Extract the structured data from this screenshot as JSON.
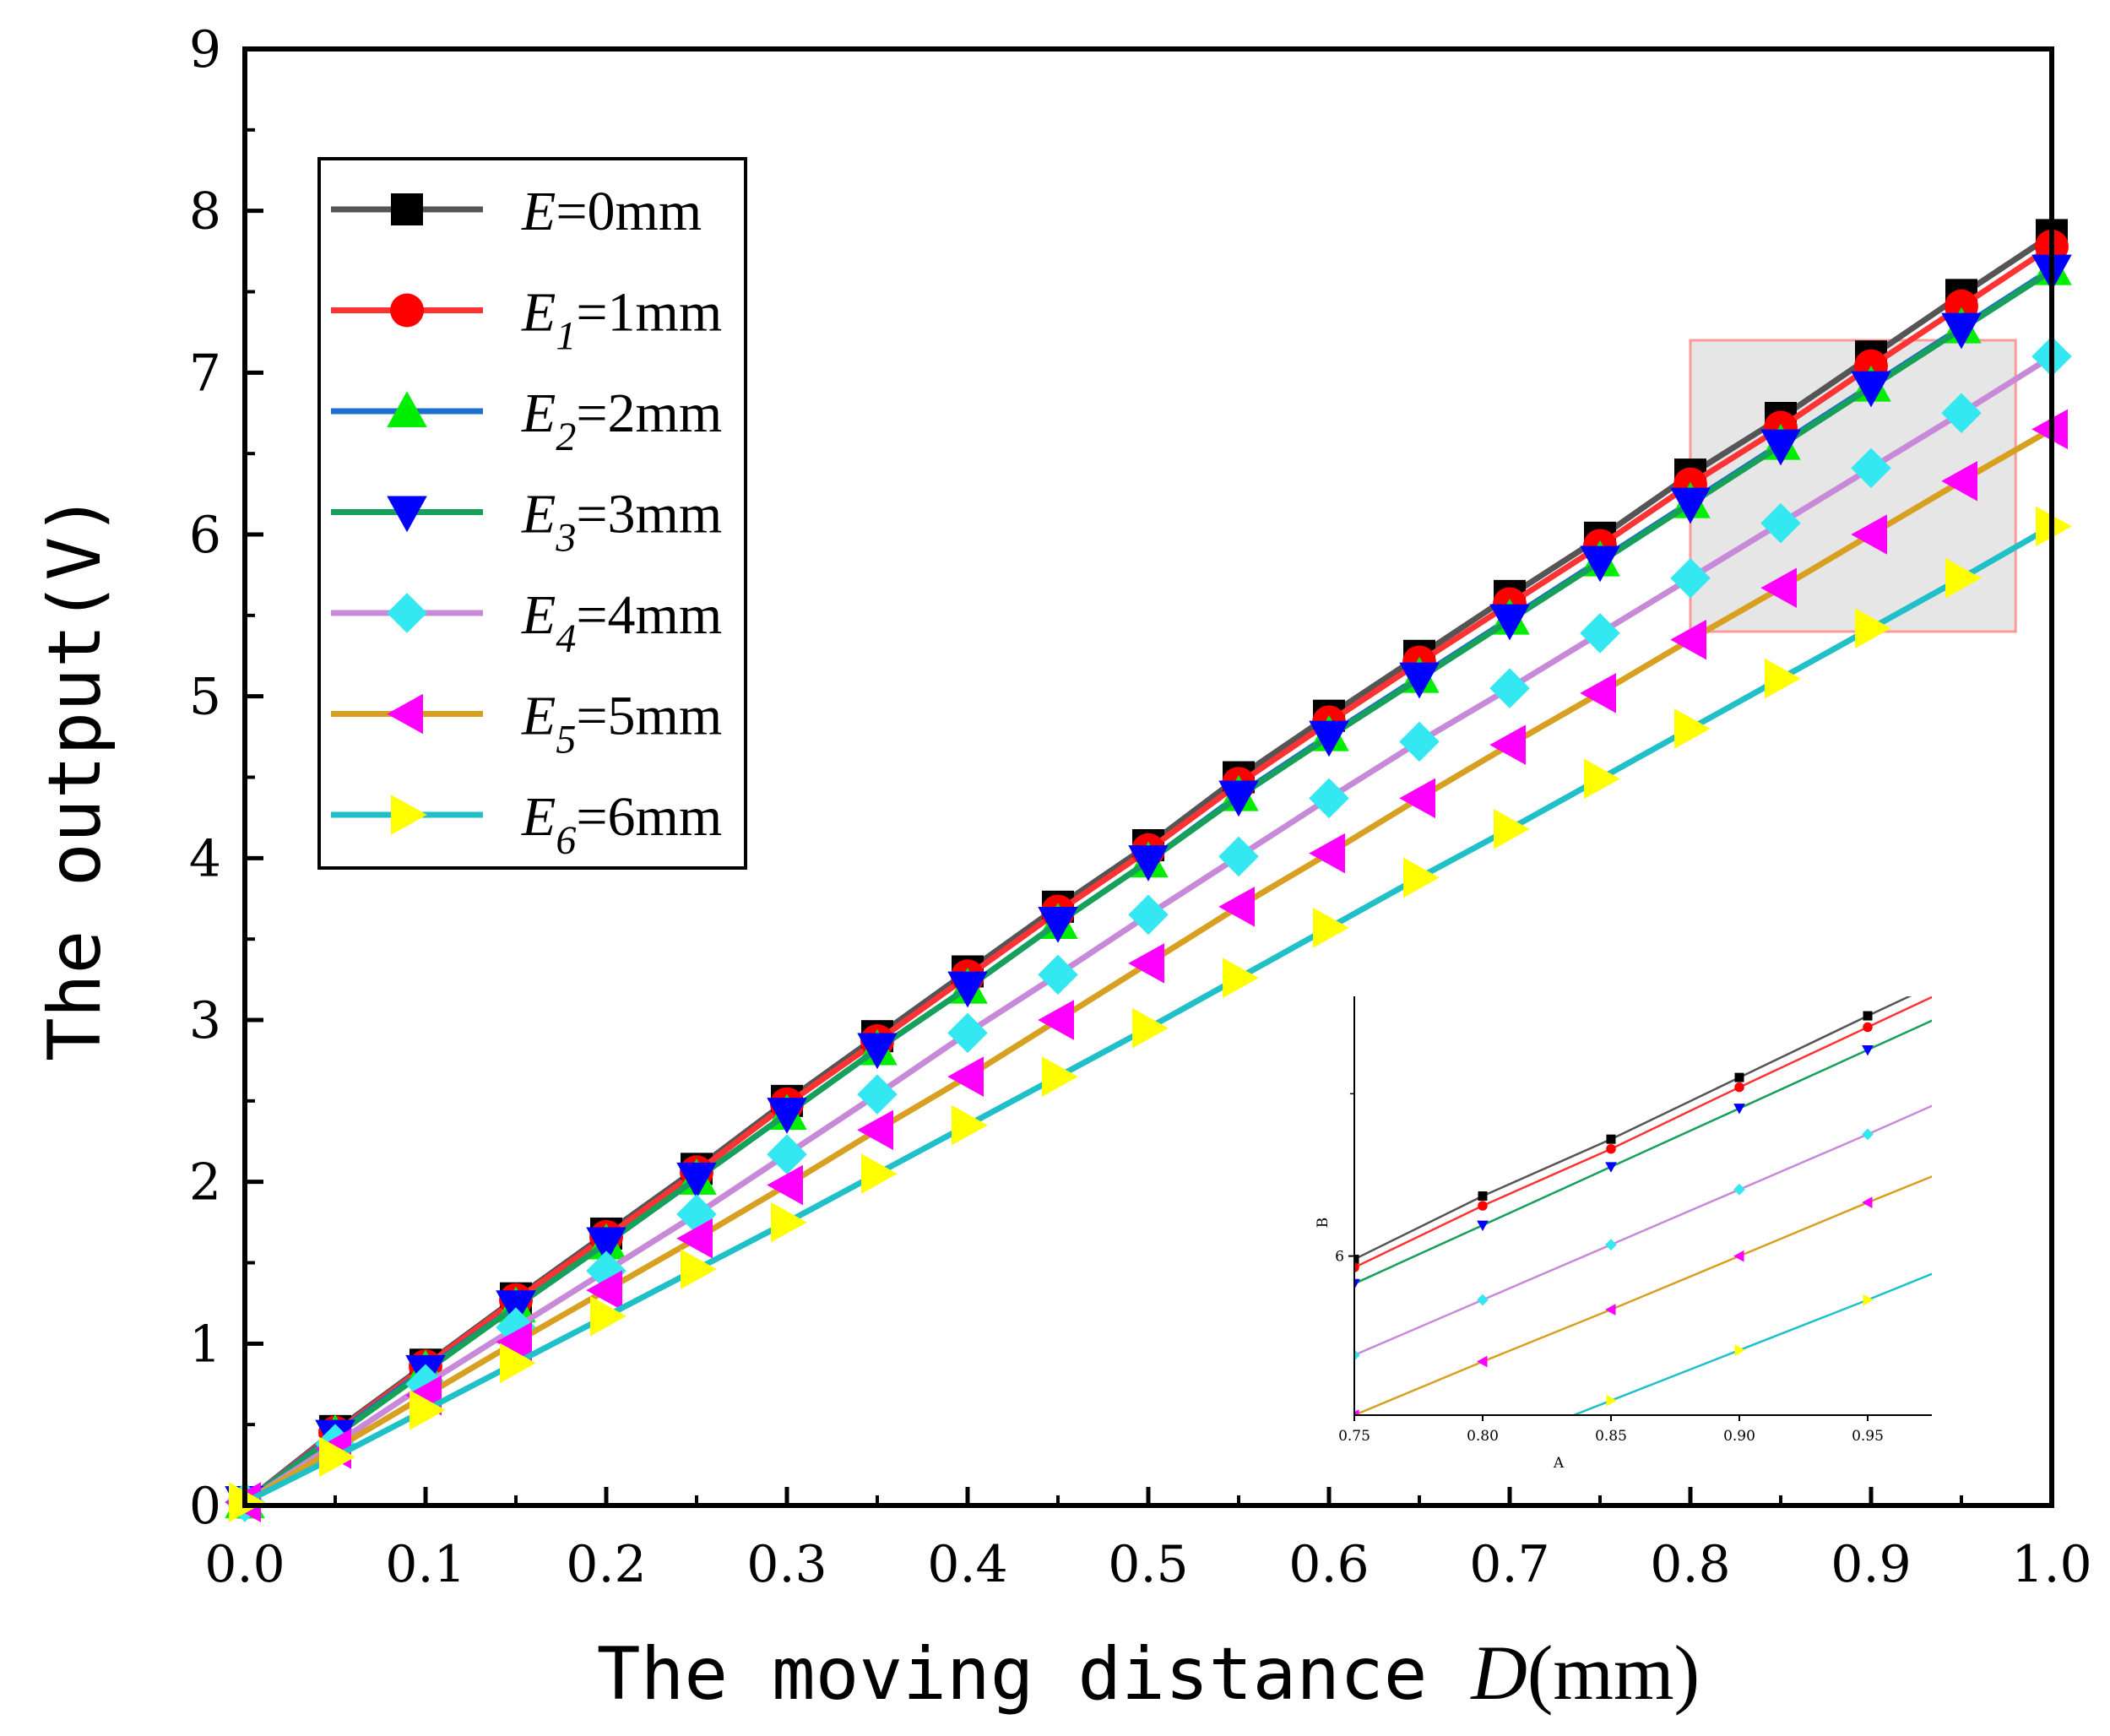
{
  "chart_data": {
    "type": "line",
    "xlabel": {
      "prefix": "The moving distance ",
      "var": "D",
      "suffix": "(mm)"
    },
    "ylabel": "The output(V)",
    "xlim": [
      0,
      1
    ],
    "ylim": [
      0,
      9
    ],
    "xticks": [
      "0.0",
      "0.1",
      "0.2",
      "0.3",
      "0.4",
      "0.5",
      "0.6",
      "0.7",
      "0.8",
      "0.9",
      "1.0"
    ],
    "yticks": [
      "0",
      "1",
      "2",
      "3",
      "4",
      "5",
      "6",
      "7",
      "8",
      "9"
    ],
    "x": [
      0,
      0.05,
      0.1,
      0.15,
      0.2,
      0.25,
      0.3,
      0.35,
      0.4,
      0.45,
      0.5,
      0.55,
      0.6,
      0.65,
      0.7,
      0.75,
      0.8,
      0.85,
      0.9,
      0.95,
      1.0
    ],
    "series": [
      {
        "name": "E=0mm",
        "label": {
          "var": "E",
          "sub": "",
          "rest": "=0mm"
        },
        "line_color": "#555555",
        "marker_color": "#000000",
        "marker": "square",
        "values": [
          0.02,
          0.46,
          0.87,
          1.28,
          1.68,
          2.08,
          2.5,
          2.9,
          3.3,
          3.7,
          4.08,
          4.5,
          4.88,
          5.25,
          5.62,
          5.98,
          6.37,
          6.72,
          7.1,
          7.48,
          7.85
        ]
      },
      {
        "name": "E1=1mm",
        "label": {
          "var": "E",
          "sub": "1",
          "rest": "=1mm"
        },
        "line_color": "#ff3333",
        "marker_color": "#ff0000",
        "marker": "circle",
        "values": [
          0.02,
          0.45,
          0.86,
          1.27,
          1.66,
          2.06,
          2.48,
          2.87,
          3.27,
          3.67,
          4.05,
          4.46,
          4.84,
          5.21,
          5.57,
          5.93,
          6.31,
          6.66,
          7.04,
          7.41,
          7.78
        ]
      },
      {
        "name": "E2=2mm",
        "label": {
          "var": "E",
          "sub": "2",
          "rest": "=2mm"
        },
        "line_color": "#1e6fd0",
        "marker_color": "#00ee00",
        "marker": "triangle-up",
        "values": [
          0.02,
          0.44,
          0.84,
          1.23,
          1.62,
          2.02,
          2.42,
          2.82,
          3.2,
          3.6,
          3.98,
          4.39,
          4.76,
          5.12,
          5.48,
          5.84,
          6.2,
          6.56,
          6.92,
          7.28,
          7.64
        ]
      },
      {
        "name": "E3=3mm",
        "label": {
          "var": "E",
          "sub": "3",
          "rest": "=3mm"
        },
        "line_color": "#16a05a",
        "marker_color": "#0000ff",
        "marker": "triangle-down",
        "values": [
          0.02,
          0.43,
          0.83,
          1.23,
          1.62,
          2.02,
          2.42,
          2.82,
          3.2,
          3.6,
          3.98,
          4.38,
          4.75,
          5.11,
          5.47,
          5.83,
          6.19,
          6.55,
          6.91,
          7.27,
          7.63
        ]
      },
      {
        "name": "E4=4mm",
        "label": {
          "var": "E",
          "sub": "4",
          "rest": "=4mm"
        },
        "line_color": "#c88ad8",
        "marker_color": "#33e8f0",
        "marker": "diamond",
        "values": [
          0.02,
          0.38,
          0.75,
          1.1,
          1.45,
          1.8,
          2.17,
          2.54,
          2.92,
          3.28,
          3.65,
          4.01,
          4.37,
          4.72,
          5.05,
          5.39,
          5.73,
          6.07,
          6.41,
          6.75,
          7.1
        ]
      },
      {
        "name": "E5=5mm",
        "label": {
          "var": "E",
          "sub": "5",
          "rest": "=5mm"
        },
        "line_color": "#d8a020",
        "marker_color": "#ff00ff",
        "marker": "triangle-left",
        "values": [
          0.02,
          0.35,
          0.68,
          1.01,
          1.33,
          1.65,
          1.98,
          2.32,
          2.65,
          3.0,
          3.35,
          3.7,
          4.03,
          4.37,
          4.7,
          5.02,
          5.35,
          5.67,
          6.0,
          6.33,
          6.65
        ]
      },
      {
        "name": "E6=6mm",
        "label": {
          "var": "E",
          "sub": "6",
          "rest": "=6mm"
        },
        "line_color": "#20c0c8",
        "marker_color": "#ffff00",
        "marker": "triangle-right",
        "values": [
          0.02,
          0.3,
          0.59,
          0.88,
          1.17,
          1.46,
          1.75,
          2.05,
          2.35,
          2.65,
          2.95,
          3.26,
          3.57,
          3.88,
          4.18,
          4.49,
          4.8,
          5.11,
          5.42,
          5.73,
          6.05
        ]
      }
    ],
    "zoom_box": {
      "x_range": [
        0.8,
        0.98
      ],
      "y_range": [
        5.4,
        7.2
      ],
      "fill": "#e6e6e6",
      "stroke": "#ff9a9a"
    },
    "inset": {
      "xlabel": "A",
      "ylabel": "B",
      "xlim": [
        0.75,
        0.975
      ],
      "ylim": [
        5.02,
        7.6
      ],
      "xticks": [
        "0.75",
        "0.80",
        "0.85",
        "0.90",
        "0.95"
      ],
      "ytick_label": "6",
      "ytick_value": 6
    }
  }
}
